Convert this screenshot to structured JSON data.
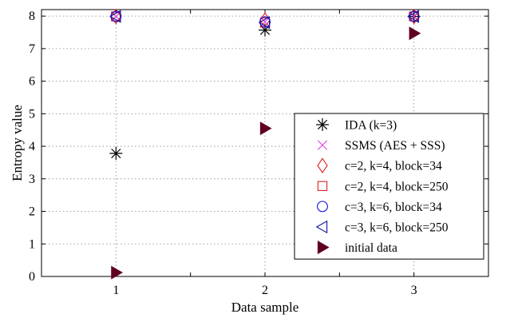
{
  "chart_data": {
    "type": "scatter",
    "title": "",
    "xlabel": "Data sample",
    "ylabel": "Entropy value",
    "xlim": [
      0.5,
      3.5
    ],
    "ylim": [
      0,
      8.2
    ],
    "xticks": [
      1,
      2,
      3
    ],
    "yticks": [
      0,
      1,
      2,
      3,
      4,
      5,
      6,
      7,
      8
    ],
    "xtick_labels": [
      "1",
      "2",
      "3"
    ],
    "ytick_labels": [
      "0",
      "1",
      "2",
      "3",
      "4",
      "5",
      "6",
      "7",
      "8"
    ],
    "grid": true,
    "legend_position": "right",
    "series": [
      {
        "name": "IDA (k=3)",
        "marker": "asterisk",
        "color": "#000000",
        "x": [
          1,
          2,
          3
        ],
        "y": [
          3.78,
          7.57,
          7.99
        ]
      },
      {
        "name": "SSMS (AES + SSS)",
        "marker": "x",
        "color": "#e040e0",
        "x": [
          1,
          2,
          3
        ],
        "y": [
          7.99,
          7.82,
          7.99
        ]
      },
      {
        "name": "c=2, k=4, block=34",
        "marker": "diamond",
        "color": "#e02020",
        "x": [
          1,
          2,
          3
        ],
        "y": [
          7.99,
          7.88,
          7.99
        ]
      },
      {
        "name": "c=2, k=4, block=250",
        "marker": "square",
        "color": "#e02020",
        "x": [
          1,
          2,
          3
        ],
        "y": [
          7.99,
          7.8,
          7.99
        ]
      },
      {
        "name": "c=3, k=6, block=34",
        "marker": "circle",
        "color": "#1010e0",
        "x": [
          1,
          2,
          3
        ],
        "y": [
          7.99,
          7.82,
          7.99
        ]
      },
      {
        "name": "c=3, k=6, block=250",
        "marker": "triangle-left",
        "color": "#1010a0",
        "x": [
          1,
          2,
          3
        ],
        "y": [
          7.99,
          7.8,
          7.99
        ]
      },
      {
        "name": "initial data",
        "marker": "triangle-right-filled",
        "color": "#600020",
        "x": [
          1,
          2,
          3
        ],
        "y": [
          0.12,
          4.55,
          7.47
        ]
      }
    ]
  }
}
